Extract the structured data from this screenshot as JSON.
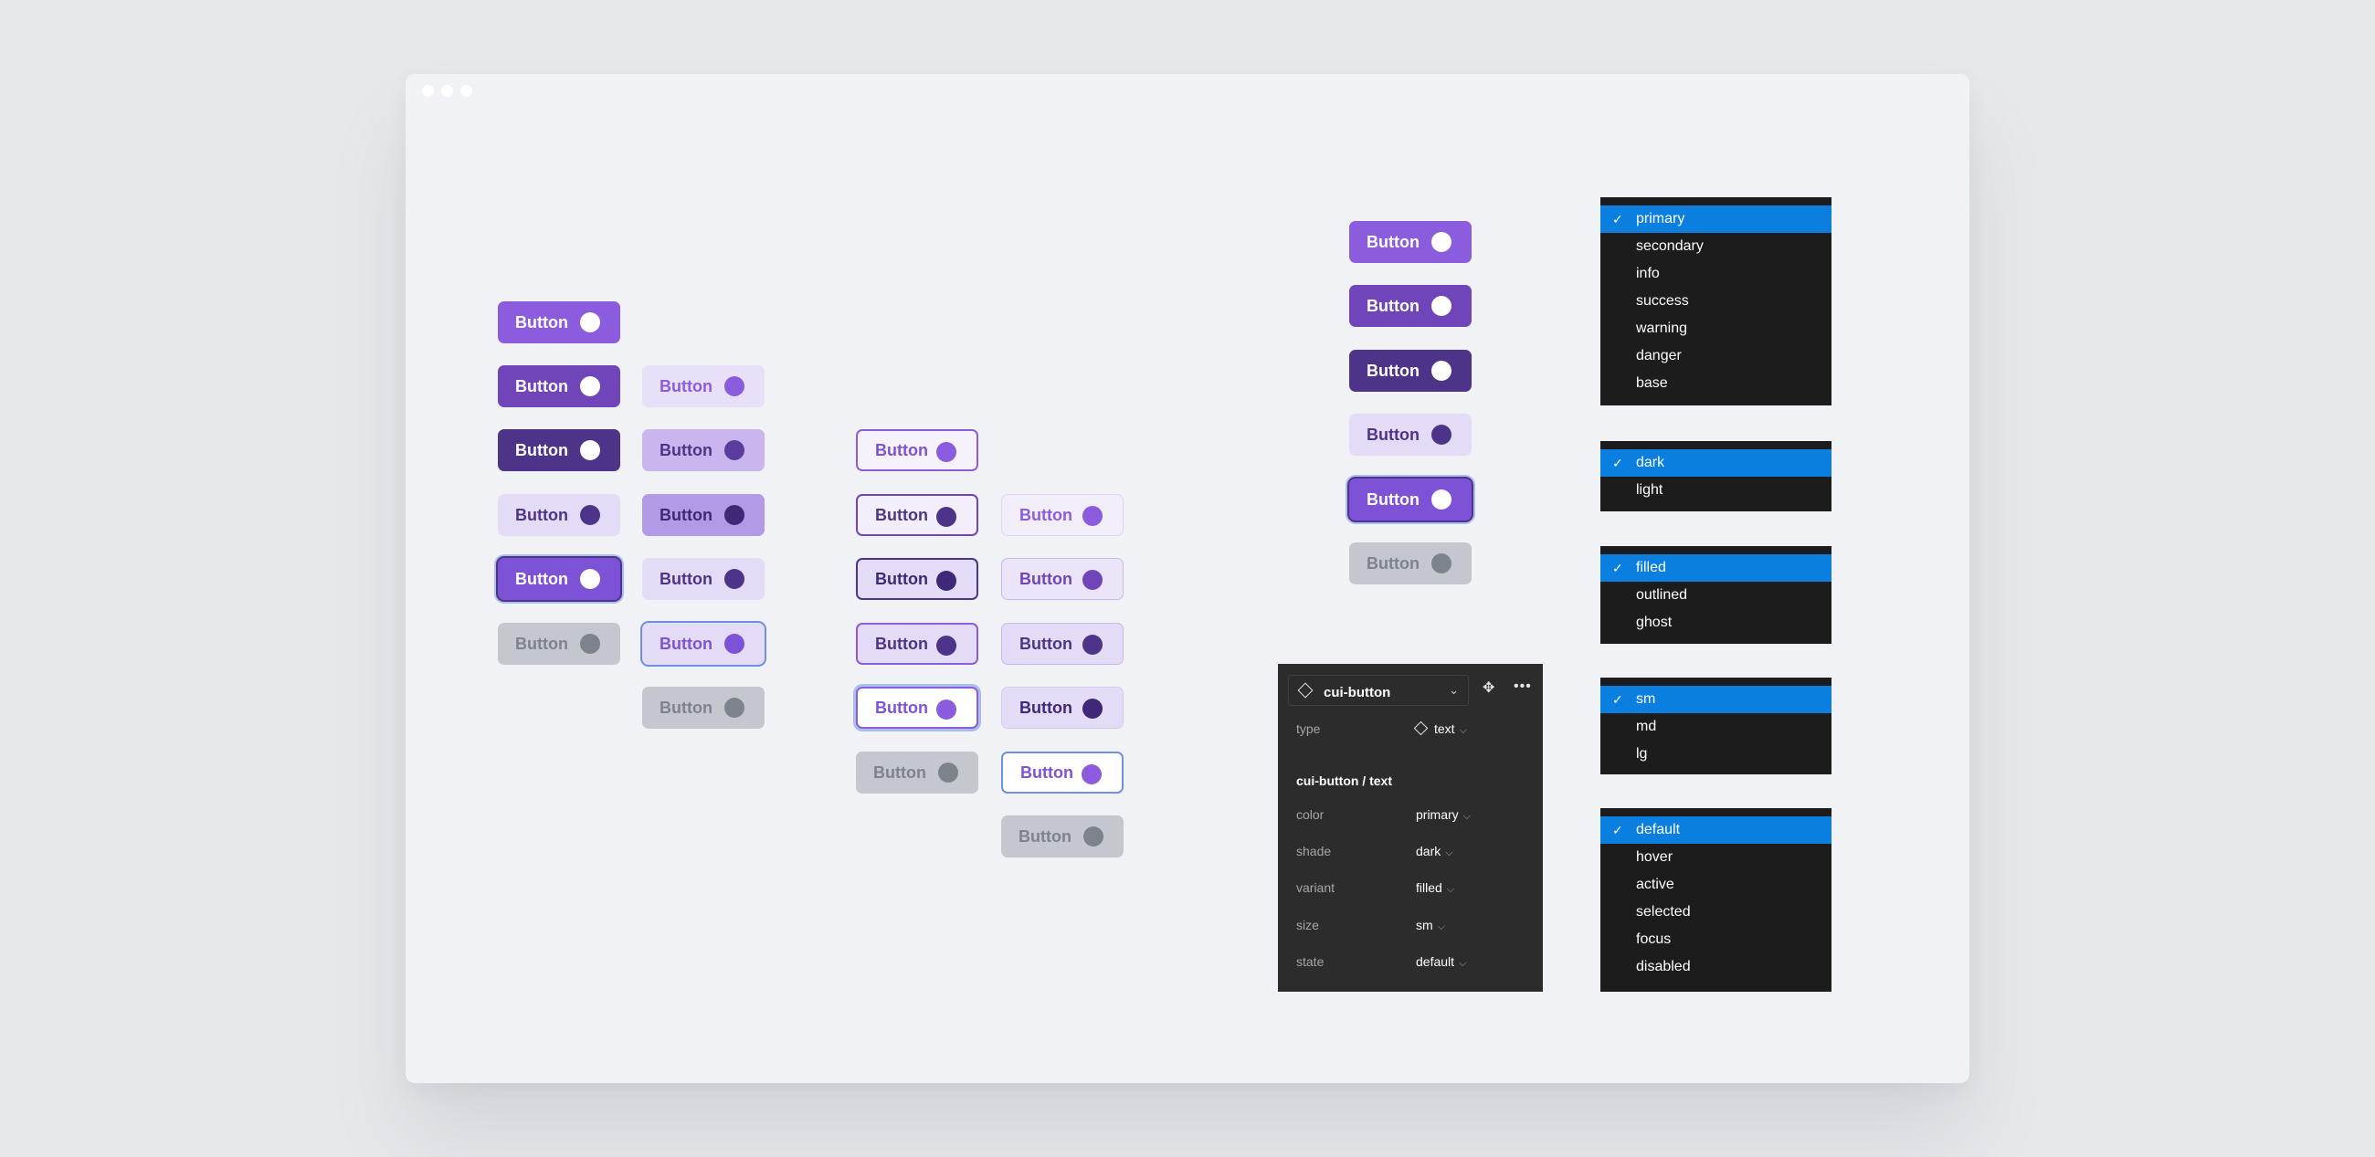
{
  "button_label": "Button",
  "inspector": {
    "component_name": "cui-button",
    "type_label": "type",
    "type_value": "text",
    "section_title": "cui-button / text",
    "props": [
      {
        "label": "color",
        "value": "primary"
      },
      {
        "label": "shade",
        "value": "dark"
      },
      {
        "label": "variant",
        "value": "filled"
      },
      {
        "label": "size",
        "value": "sm"
      },
      {
        "label": "state",
        "value": "default"
      }
    ]
  },
  "menus": {
    "color": {
      "selected": "primary",
      "items": [
        "primary",
        "secondary",
        "info",
        "success",
        "warning",
        "danger",
        "base"
      ]
    },
    "shade": {
      "selected": "dark",
      "items": [
        "dark",
        "light"
      ]
    },
    "variant": {
      "selected": "filled",
      "items": [
        "filled",
        "outlined",
        "ghost"
      ]
    },
    "size": {
      "selected": "sm",
      "items": [
        "sm",
        "md",
        "lg"
      ]
    },
    "state": {
      "selected": "default",
      "items": [
        "default",
        "hover",
        "active",
        "selected",
        "focus",
        "disabled"
      ]
    }
  },
  "colors": {
    "primary": "#8b5cdd",
    "primary_dark": "#6f45b9",
    "primary_darker": "#4e3489",
    "primary_light": "#e4dcf6",
    "disabled": "#c4c8ce",
    "menu_bg": "#1c1c1c",
    "menu_selected": "#0a7fe0",
    "panel_bg": "#2c2c2c"
  }
}
